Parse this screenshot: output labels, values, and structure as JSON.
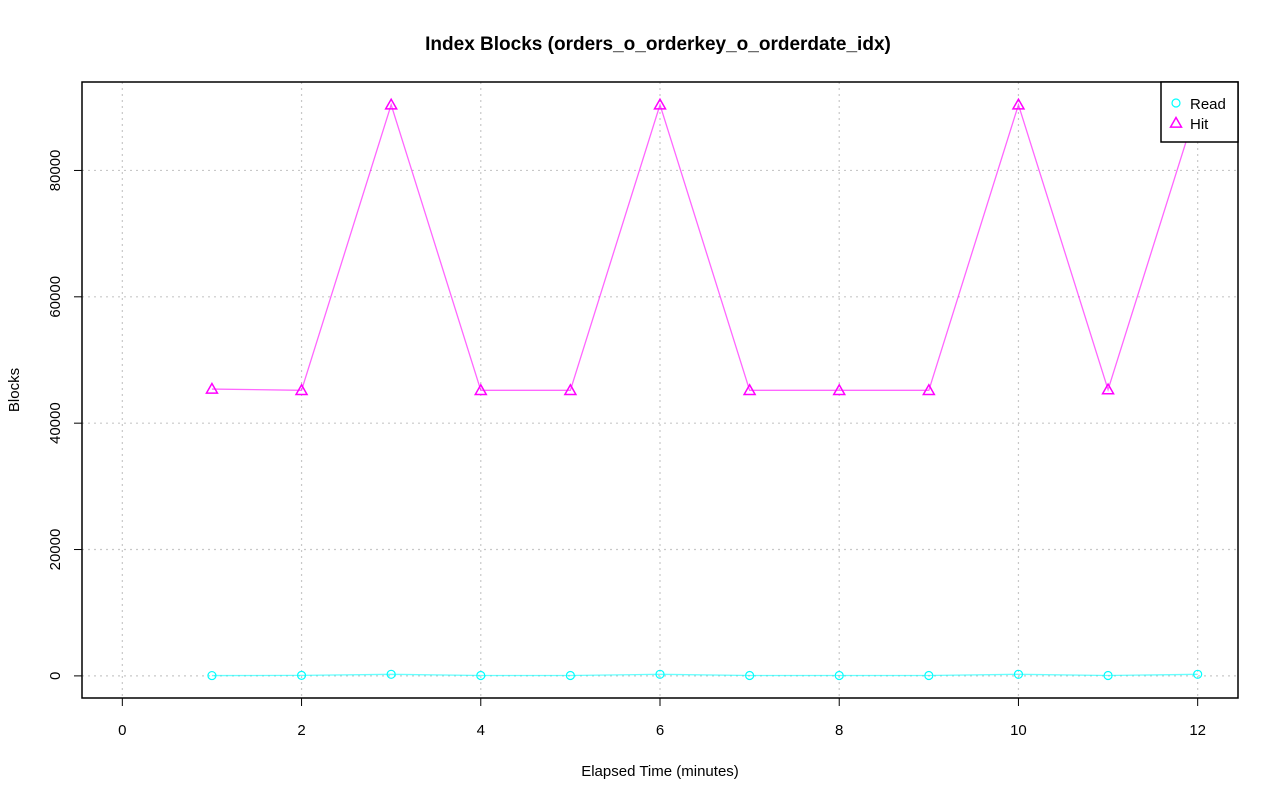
{
  "chart_data": {
    "type": "line",
    "title": "Index Blocks (orders_o_orderkey_o_orderdate_idx)",
    "xlabel": "Elapsed Time (minutes)",
    "ylabel": "Blocks",
    "xlim": [
      -0.45,
      12.45
    ],
    "ylim": [
      -3500,
      94000
    ],
    "x_ticks": [
      0,
      2,
      4,
      6,
      8,
      10,
      12
    ],
    "y_ticks": [
      0,
      20000,
      40000,
      60000,
      80000
    ],
    "grid": true,
    "legend_position": "top-right",
    "x": [
      1,
      2,
      3,
      4,
      5,
      6,
      7,
      8,
      9,
      10,
      11,
      12
    ],
    "series": [
      {
        "name": "Read",
        "color": "#00ffff",
        "marker": "circle",
        "values": [
          50,
          80,
          250,
          60,
          60,
          250,
          60,
          60,
          60,
          250,
          60,
          250
        ]
      },
      {
        "name": "Hit",
        "color": "#ff00ff",
        "marker": "triangle",
        "values": [
          45400,
          45200,
          90400,
          45200,
          45200,
          90400,
          45200,
          45200,
          45200,
          90400,
          45300,
          90400
        ]
      }
    ]
  }
}
